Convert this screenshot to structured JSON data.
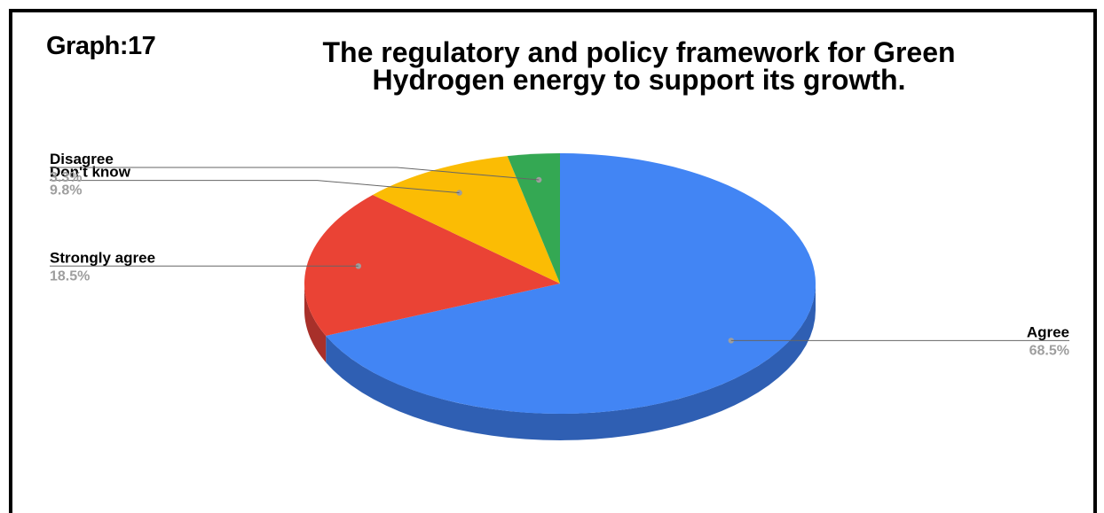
{
  "graph_label": "Graph:17",
  "chart_data": {
    "type": "pie",
    "title_line1": "The regulatory and policy framework for Green",
    "title_line2": "Hydrogen energy to support its growth.",
    "slices": [
      {
        "label": "Agree",
        "pct_label": "68.5%",
        "value": 68.5,
        "color": "#4285f4",
        "side": "#2f5fb3"
      },
      {
        "label": "Strongly agree",
        "pct_label": "18.5%",
        "value": 18.5,
        "color": "#ea4335",
        "side": "#a8302a"
      },
      {
        "label": "Don't know",
        "pct_label": "9.8%",
        "value": 9.8,
        "color": "#fbbc04",
        "side": "#b38603"
      },
      {
        "label": "Disagree",
        "pct_label": "3.3%",
        "value": 3.3,
        "color": "#34a853",
        "side": "#25783c"
      }
    ],
    "legend": "none",
    "3d": true
  }
}
